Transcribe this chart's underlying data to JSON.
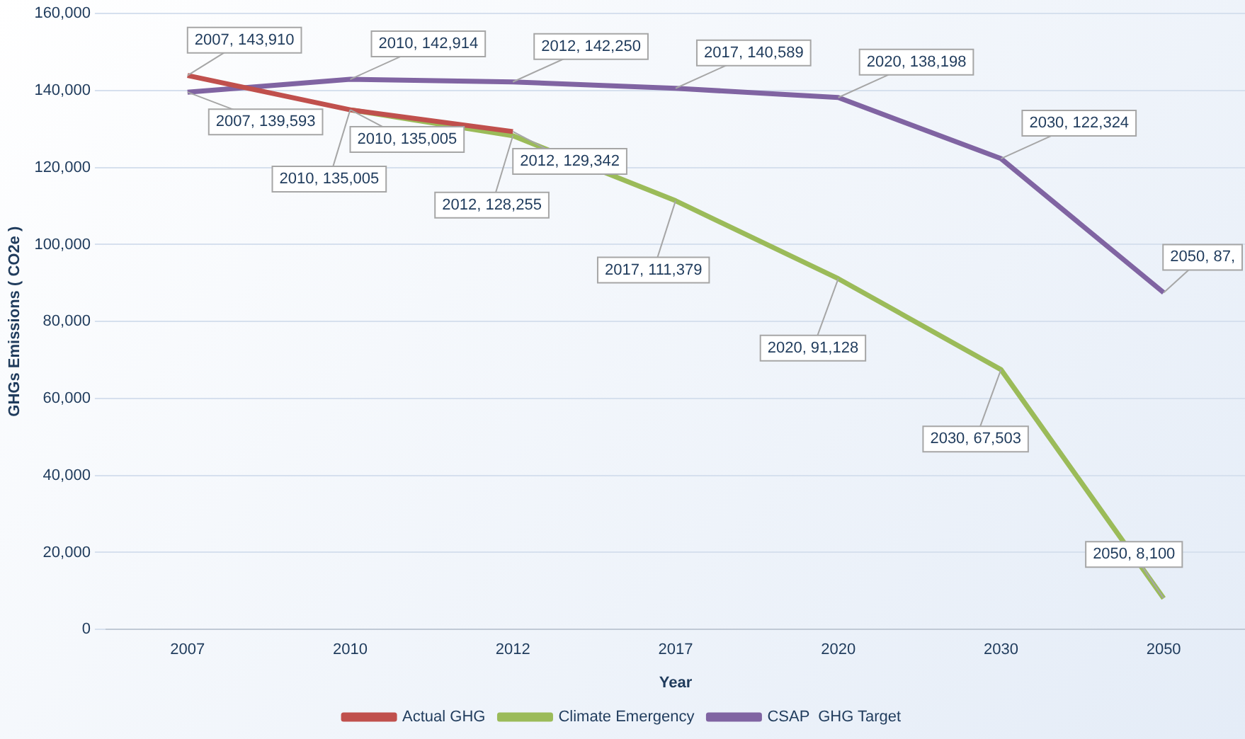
{
  "chart_data": {
    "type": "line",
    "xlabel": "Year",
    "ylabel": "GHGs Emissions ( CO2e )",
    "categories": [
      "2007",
      "2010",
      "2012",
      "2017",
      "2020",
      "2030",
      "2050"
    ],
    "series": [
      {
        "name": "Actual GHG",
        "color": "#c0504d",
        "values": [
          143910,
          135005,
          129342,
          null,
          null,
          null,
          null
        ],
        "value_labels": [
          "2007, 143,910",
          "2010, 135,005",
          "2012, 129,342",
          null,
          null,
          null,
          null
        ]
      },
      {
        "name": "Climate Emergency",
        "color": "#9bbb59",
        "values": [
          null,
          135005,
          128255,
          111379,
          91128,
          67503,
          8100
        ],
        "value_labels": [
          null,
          "2010, 135,005",
          "2012, 128,255",
          "2017, 111,379",
          "2020, 91,128",
          "2030, 67,503",
          "2050, 8,100"
        ]
      },
      {
        "name": "CSAP  GHG Target",
        "color": "#8064a2",
        "values": [
          139593,
          142914,
          142250,
          140589,
          138198,
          122324,
          87500
        ],
        "value_labels": [
          "2007, 139,593",
          "2010, 142,914",
          "2012, 142,250",
          "2017, 140,589",
          "2020, 138,198",
          "2030, 122,324",
          null
        ]
      }
    ],
    "annotations": [
      {
        "text": "2050, 87,",
        "x": "2050",
        "y": 87500
      }
    ],
    "ylim": [
      0,
      160000
    ],
    "yticks": [
      0,
      {
        "value": 20000,
        "label": "20,000"
      },
      {
        "value": 40000,
        "label": "40,000"
      },
      {
        "value": 60000,
        "label": "60,000"
      },
      {
        "value": 80000,
        "label": "80,000"
      },
      {
        "value": 100000,
        "label": "100,000"
      },
      {
        "value": 120000,
        "label": "120,000"
      },
      {
        "value": 140000,
        "label": "140,000"
      },
      {
        "value": 160000,
        "label": "160,000"
      }
    ],
    "grid": "y",
    "legend": "bottom",
    "marker": "none",
    "line_style": "solid"
  }
}
